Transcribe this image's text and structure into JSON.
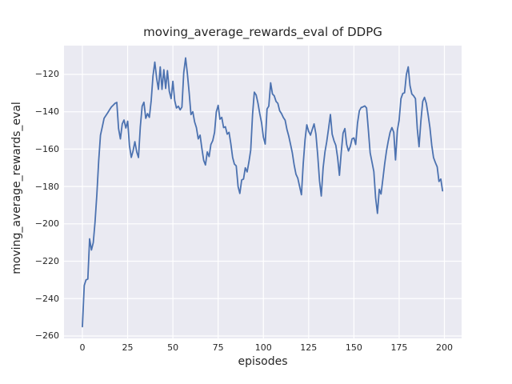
{
  "figure": {
    "title": "moving_average_rewards_eval of DDPG",
    "xlabel": "episodes",
    "ylabel": "moving_average_rewards_eval"
  },
  "chart_data": {
    "type": "line",
    "title": "moving_average_rewards_eval of DDPG",
    "xlabel": "episodes",
    "ylabel": "moving_average_rewards_eval",
    "grid": true,
    "legend": false,
    "plot_bg": "#eaeaf2",
    "grid_color": "#ffffff",
    "text_color": "#262626",
    "xlim": [
      -10.16,
      209.5
    ],
    "ylim": [
      -261.3,
      -104.6
    ],
    "xticks": [
      0,
      25,
      50,
      75,
      100,
      125,
      150,
      175,
      200
    ],
    "xticklabels": [
      "0",
      "25",
      "50",
      "75",
      "100",
      "125",
      "150",
      "175",
      "200"
    ],
    "yticks": [
      -120,
      -140,
      -160,
      -180,
      -200,
      -220,
      -240,
      -260
    ],
    "yticklabels": [
      "−120",
      "−140",
      "−160",
      "−180",
      "−200",
      "−220",
      "−240",
      "−260"
    ],
    "series": [
      {
        "name": "moving_average_rewards_eval",
        "color": "#4c72b0",
        "x_start": 0,
        "x_step": 1,
        "values": [
          -255,
          -233,
          -230,
          -229.5,
          -208,
          -214,
          -210,
          -199,
          -184,
          -166,
          -152.5,
          -148,
          -143.5,
          -142,
          -140.5,
          -139,
          -137.5,
          -136.5,
          -135.5,
          -135,
          -149,
          -154.5,
          -146.5,
          -144.4,
          -148.7,
          -145.1,
          -158,
          -164.4,
          -161,
          -156,
          -161.5,
          -164.5,
          -148,
          -137,
          -134.9,
          -143.5,
          -141,
          -143,
          -134,
          -121,
          -113.4,
          -122,
          -128,
          -116,
          -128,
          -117.5,
          -127.5,
          -118,
          -129,
          -133,
          -123.7,
          -134,
          -138,
          -137,
          -139,
          -137.5,
          -119,
          -111.2,
          -119.5,
          -130,
          -141.5,
          -140,
          -145.5,
          -148.5,
          -154.5,
          -152.5,
          -159.5,
          -166,
          -168.5,
          -161.5,
          -164,
          -157.5,
          -155.5,
          -151,
          -140,
          -136.6,
          -144,
          -143,
          -148.5,
          -148,
          -152,
          -151,
          -157,
          -164.5,
          -168,
          -169,
          -180,
          -183.7,
          -176.5,
          -176,
          -170,
          -172.2,
          -167,
          -160.5,
          -141.5,
          -129.5,
          -131,
          -135.5,
          -141,
          -146,
          -153.5,
          -157.3,
          -138.5,
          -137,
          -124.5,
          -130.5,
          -131.5,
          -134.5,
          -135.5,
          -139.5,
          -141,
          -143,
          -144.5,
          -149.5,
          -153,
          -157.5,
          -162,
          -168.5,
          -173.5,
          -175.5,
          -180,
          -184.4,
          -168,
          -155,
          -147,
          -150.5,
          -152.5,
          -149.5,
          -146.5,
          -152,
          -163,
          -177,
          -185.1,
          -170,
          -161.5,
          -156,
          -149,
          -141.5,
          -152,
          -155.5,
          -158,
          -164.5,
          -174,
          -162,
          -151.5,
          -149,
          -157.5,
          -161,
          -158.5,
          -154.5,
          -154,
          -157.5,
          -146,
          -139.5,
          -137.8,
          -137.4,
          -136.9,
          -138,
          -150,
          -162,
          -167,
          -172,
          -186,
          -194.4,
          -181.5,
          -184,
          -176,
          -168,
          -161,
          -155.5,
          -151,
          -148.5,
          -151,
          -165.8,
          -150,
          -144.5,
          -133,
          -130.2,
          -129.8,
          -120,
          -116,
          -126,
          -130.5,
          -131.5,
          -133,
          -149,
          -158.7,
          -145,
          -134.5,
          -132.3,
          -135.5,
          -141.5,
          -148.5,
          -158,
          -164.5,
          -167.2,
          -169.5,
          -177.3,
          -176,
          -182.3
        ]
      }
    ]
  }
}
